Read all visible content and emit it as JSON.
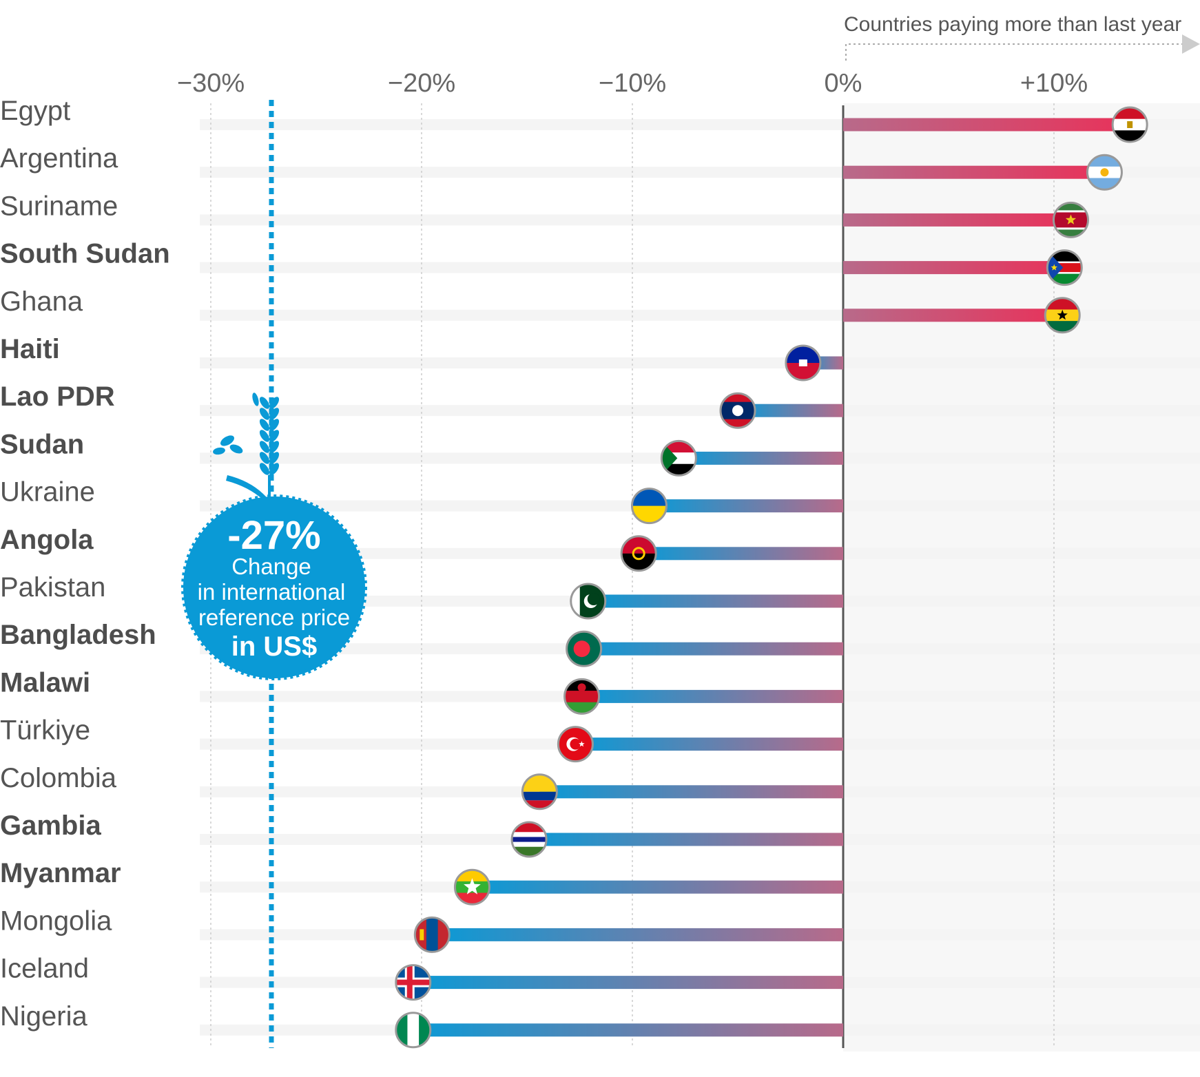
{
  "chart_data": {
    "type": "bar",
    "orientation": "horizontal",
    "annotation_top": "Countries paying more than last year",
    "x_ticks": [
      {
        "value": -30,
        "label": "−30%"
      },
      {
        "value": -20,
        "label": "−20%"
      },
      {
        "value": -10,
        "label": "−10%"
      },
      {
        "value": 0,
        "label": "0%"
      },
      {
        "value": 10,
        "label": "+10%"
      }
    ],
    "xlim": [
      -30.6,
      16.6
    ],
    "reference": {
      "value": -27,
      "big_label": "-27%",
      "line1": "Change",
      "line2": "in international",
      "line3": "reference price",
      "line4": "in US$",
      "color": "#0a9ad6"
    },
    "colors": {
      "positive": "#e8325a",
      "negative": "#0a9ad6",
      "near_zero": "#b86a8a"
    },
    "categories": [
      "Egypt",
      "Argentina",
      "Suriname",
      "South Sudan",
      "Ghana",
      "Haiti",
      "Lao PDR",
      "Sudan",
      "Ukraine",
      "Angola",
      "Pakistan",
      "Bangladesh",
      "Malawi",
      "Türkiye",
      "Colombia",
      "Gambia",
      "Myanmar",
      "Mongolia",
      "Iceland",
      "Nigeria"
    ],
    "values": [
      13.6,
      12.4,
      10.8,
      10.5,
      10.4,
      -1.9,
      -5.0,
      -7.8,
      -9.2,
      -9.7,
      -12.1,
      -12.3,
      -12.4,
      -12.7,
      -14.4,
      -14.9,
      -17.6,
      -19.5,
      -20.4,
      -20.4
    ],
    "bold": [
      false,
      false,
      false,
      true,
      false,
      true,
      true,
      true,
      false,
      true,
      false,
      true,
      true,
      false,
      false,
      true,
      true,
      false,
      false,
      false
    ],
    "flags": [
      "egypt-flag",
      "argentina-flag",
      "suriname-flag",
      "south-sudan-flag",
      "ghana-flag",
      "haiti-flag",
      "laos-flag",
      "sudan-flag",
      "ukraine-flag",
      "angola-flag",
      "pakistan-flag",
      "bangladesh-flag",
      "malawi-flag",
      "turkiye-flag",
      "colombia-flag",
      "gambia-flag",
      "myanmar-flag",
      "mongolia-flag",
      "iceland-flag",
      "nigeria-flag"
    ]
  }
}
